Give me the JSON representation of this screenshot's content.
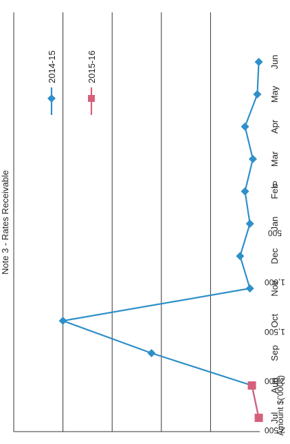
{
  "chart_data": {
    "type": "line",
    "title": "Note 3 - Rates Receivable",
    "ylabel": "Amount $('000s)",
    "xlabel": "",
    "ylim": [
      0,
      2500
    ],
    "yticks": [
      0,
      500,
      1000,
      1500,
      2000,
      2500
    ],
    "ytick_labels": [
      "0",
      "500",
      "1,000",
      "1,500",
      "2,000",
      "2,500"
    ],
    "categories": [
      "Jul",
      "Aug",
      "Sep",
      "Oct",
      "Nov",
      "Dec",
      "Jan",
      "Feb",
      "Mar",
      "Apr",
      "May",
      "Jun"
    ],
    "grid": true,
    "legend_position": "top-right",
    "series": [
      {
        "name": "2014-15",
        "color": "#2e8fc9",
        "marker": "diamond",
        "values": [
          10,
          80,
          1100,
          2000,
          100,
          200,
          100,
          150,
          70,
          150,
          25,
          10
        ]
      },
      {
        "name": "2015-16",
        "color": "#d6607a",
        "marker": "square",
        "values": [
          10,
          80,
          null,
          null,
          null,
          null,
          null,
          null,
          null,
          null,
          null,
          null
        ]
      }
    ]
  }
}
